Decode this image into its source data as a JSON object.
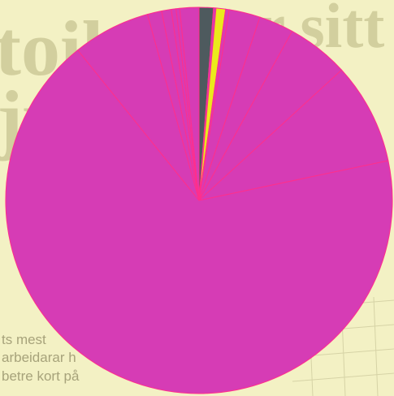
{
  "background": {
    "headline_left": "toil",
    "headline_left_2": "ju",
    "headline_right": "er sitt",
    "body_lines": [
      "ts mest",
      "arbeidarar h",
      "betre kort på"
    ],
    "colors": {
      "paper": "#f3f1c4",
      "ink": "#8e8a63",
      "grid": "#d6d3a6"
    }
  },
  "chart_data": {
    "type": "pie",
    "start_angle_deg": 0,
    "direction": "clockwise",
    "slices": [
      {
        "value": 1.2,
        "color": "#4e5a5e"
      },
      {
        "value": 0.2,
        "color": "#d63cb5"
      },
      {
        "value": 0.8,
        "color": "#eaea1c"
      },
      {
        "value": 0.3,
        "color": "#d63cb5"
      },
      {
        "value": 2.6,
        "color": "#d63cb5"
      },
      {
        "value": 2.9,
        "color": "#d63cb5"
      },
      {
        "value": 5.2,
        "color": "#d63cb5"
      },
      {
        "value": 8.5,
        "color": "#d63cb5"
      },
      {
        "value": 67.5,
        "color": "#d63cb5"
      },
      {
        "value": 6.5,
        "color": "#d63cb5"
      },
      {
        "value": 1.2,
        "color": "#d63cb5"
      },
      {
        "value": 0.8,
        "color": "#d63cb5"
      },
      {
        "value": 0.4,
        "color": "#d63cb5"
      },
      {
        "value": 0.3,
        "color": "#d63cb5"
      },
      {
        "value": 1.6,
        "color": "#d63cb5"
      }
    ],
    "edge_color": "#ff2f8c",
    "legend": "none"
  }
}
